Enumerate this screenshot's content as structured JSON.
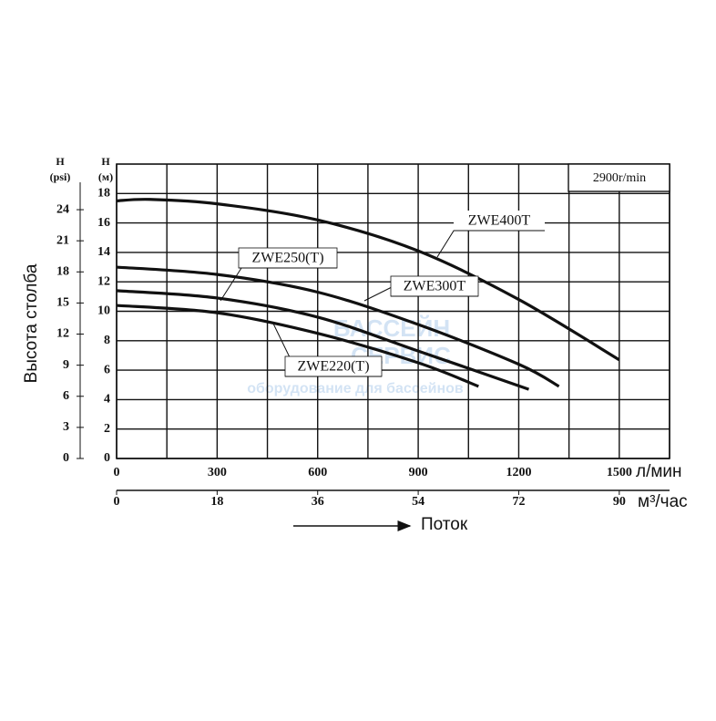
{
  "chart_data": {
    "type": "line",
    "y_label": "Высота столба",
    "x_label": "Поток",
    "y_unit": "H\n(м)",
    "y2_unit": "H\n(psi)",
    "x_unit": "л/мин",
    "x2_unit": "м³/час",
    "speed_note": "2900r/min",
    "watermark": [
      "БАССЕЙН",
      "СЕРВИС",
      "оборудование для бассейнов"
    ],
    "xlim": [
      0,
      1650
    ],
    "xticks": [
      0,
      300,
      600,
      900,
      1200,
      1500
    ],
    "xgrid": [
      0,
      150,
      300,
      450,
      600,
      750,
      900,
      1050,
      1200,
      1350,
      1500,
      1650
    ],
    "x2lim": [
      0,
      99
    ],
    "x2ticks": [
      0,
      18,
      36,
      54,
      72,
      90
    ],
    "ylim": [
      0,
      20
    ],
    "yticks": [
      0,
      2,
      4,
      6,
      8,
      10,
      12,
      14,
      16,
      18
    ],
    "y2lim": [
      0,
      28.4
    ],
    "y2ticks": [
      0,
      3,
      6,
      9,
      12,
      15,
      18,
      21,
      24
    ],
    "grid": true,
    "series": [
      {
        "name": "ZWE400T",
        "color": "#111111",
        "x": [
          0,
          100,
          300,
          600,
          900,
          1200,
          1500
        ],
        "values": [
          17.5,
          17.6,
          17.3,
          16.2,
          14.1,
          10.8,
          6.7
        ]
      },
      {
        "name": "ZWE300T",
        "color": "#111111",
        "x": [
          0,
          300,
          600,
          900,
          1200,
          1320
        ],
        "values": [
          13.0,
          12.5,
          11.3,
          9.1,
          6.4,
          4.9
        ]
      },
      {
        "name": "ZWE250(T)",
        "color": "#111111",
        "x": [
          0,
          300,
          600,
          900,
          1230
        ],
        "values": [
          11.4,
          10.9,
          9.6,
          7.3,
          4.7
        ]
      },
      {
        "name": "ZWE220(T)",
        "color": "#111111",
        "x": [
          0,
          300,
          600,
          900,
          1080
        ],
        "values": [
          10.4,
          9.9,
          8.5,
          6.5,
          4.9
        ]
      }
    ]
  }
}
